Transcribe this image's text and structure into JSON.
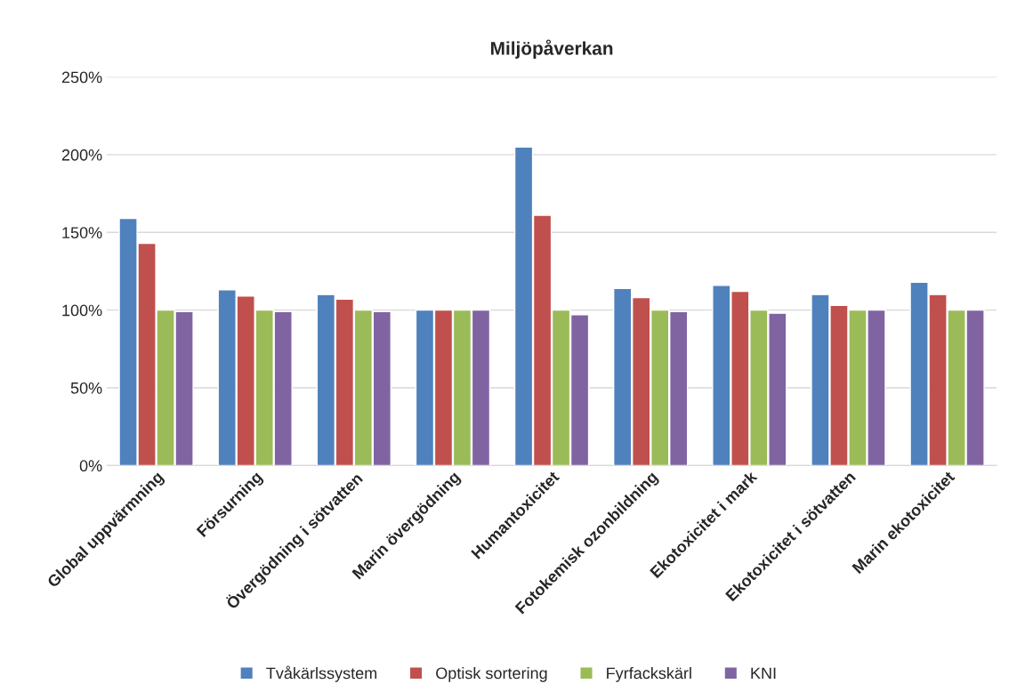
{
  "chart_data": {
    "type": "bar",
    "title": "Miljöpåverkan",
    "categories": [
      "Global uppvärmning",
      "Försurning",
      "Övergödning i sötvatten",
      "Marin övergödning",
      "Humantoxicitet",
      "Fotokemisk ozonbildning",
      "Ekotoxicitet i mark",
      "Ekotoxicitet i sötvatten",
      "Marin ekotoxicitet"
    ],
    "series": [
      {
        "name": "Tvåkärlssystem",
        "color": "#4f81bd",
        "values": [
          159,
          113,
          110,
          100,
          205,
          114,
          116,
          110,
          118
        ]
      },
      {
        "name": "Optisk sortering",
        "color": "#c0504d",
        "values": [
          143,
          109,
          107,
          100,
          161,
          108,
          112,
          103,
          110
        ]
      },
      {
        "name": "Fyrfackskärl",
        "color": "#9bbb59",
        "values": [
          100,
          100,
          100,
          100,
          100,
          100,
          100,
          100,
          100
        ]
      },
      {
        "name": "KNI",
        "color": "#8064a2",
        "values": [
          99,
          99,
          99,
          100,
          97,
          99,
          98,
          100,
          100
        ]
      }
    ],
    "ylim": [
      0,
      250
    ],
    "yticks": [
      {
        "value": 0,
        "label": "0%"
      },
      {
        "value": 50,
        "label": "50%"
      },
      {
        "value": 100,
        "label": "100%"
      },
      {
        "value": 150,
        "label": "150%"
      },
      {
        "value": 200,
        "label": "200%"
      },
      {
        "value": 250,
        "label": "250%"
      }
    ],
    "grid": "y",
    "legend": "bottom"
  }
}
